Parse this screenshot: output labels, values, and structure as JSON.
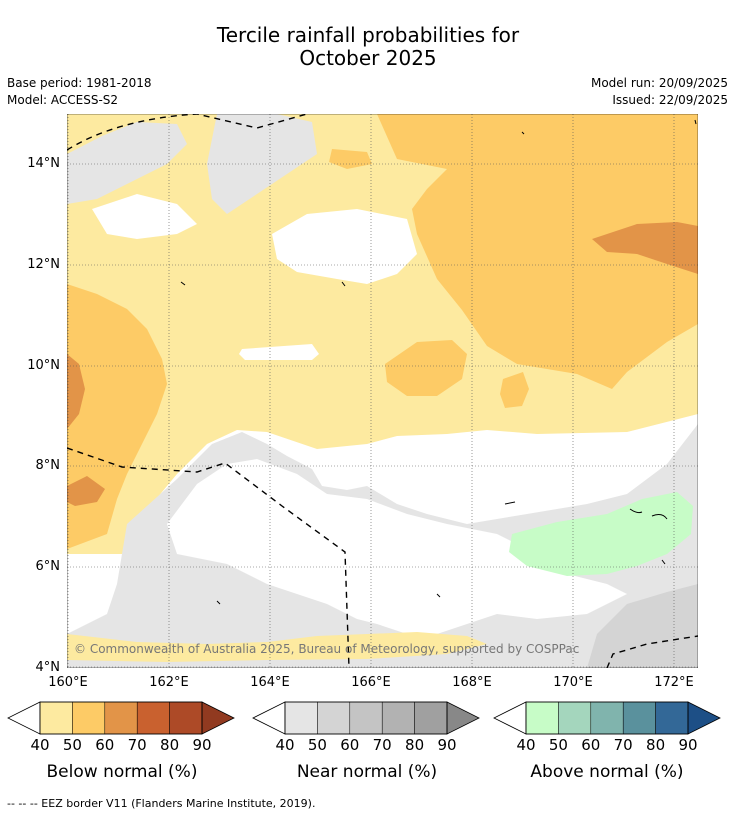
{
  "title": {
    "line1": "Tercile rainfall probabilities for",
    "line2": "October 2025"
  },
  "meta": {
    "base_period": "Base period: 1981-2018",
    "model": "Model: ACCESS-S2",
    "model_run": "Model run: 20/09/2025",
    "issued": "Issued: 22/09/2025"
  },
  "map": {
    "lat_labels": [
      "14°N",
      "12°N",
      "10°N",
      "8°N",
      "6°N",
      "4°N"
    ],
    "lon_labels": [
      "160°E",
      "162°E",
      "164°E",
      "166°E",
      "168°E",
      "170°E",
      "172°E"
    ],
    "copyright": "© Commonwealth of Australia 2025, Bureau of Meteorology, supported by COSPPac",
    "colors": {
      "below_40": "#fdeaa0",
      "below_50": "#fdcb66",
      "below_60": "#e29448",
      "below_70": "#c9612f",
      "near_40": "#e5e5e5",
      "near_50": "#d4d4d4",
      "above_40": "#c7fcc7"
    }
  },
  "colorbars": [
    {
      "label": "Below normal (%)",
      "ticks": [
        "40",
        "50",
        "60",
        "70",
        "80",
        "90"
      ],
      "colors": [
        "#fdeaa0",
        "#fdcb66",
        "#e29448",
        "#c9612f",
        "#ad4a27",
        "#913a20"
      ]
    },
    {
      "label": "Near normal (%)",
      "ticks": [
        "40",
        "50",
        "60",
        "70",
        "80",
        "90"
      ],
      "colors": [
        "#e5e5e5",
        "#d4d4d4",
        "#c4c4c4",
        "#b2b2b2",
        "#a0a0a0",
        "#888888"
      ]
    },
    {
      "label": "Above normal (%)",
      "ticks": [
        "40",
        "50",
        "60",
        "70",
        "80",
        "90"
      ],
      "colors": [
        "#c7fcc7",
        "#a4d6bd",
        "#80b4ad",
        "#5a919d",
        "#336897",
        "#1d4f86"
      ]
    }
  ],
  "footnote": "--  --  -- EEZ border V11 (Flanders Marine Institute, 2019)."
}
